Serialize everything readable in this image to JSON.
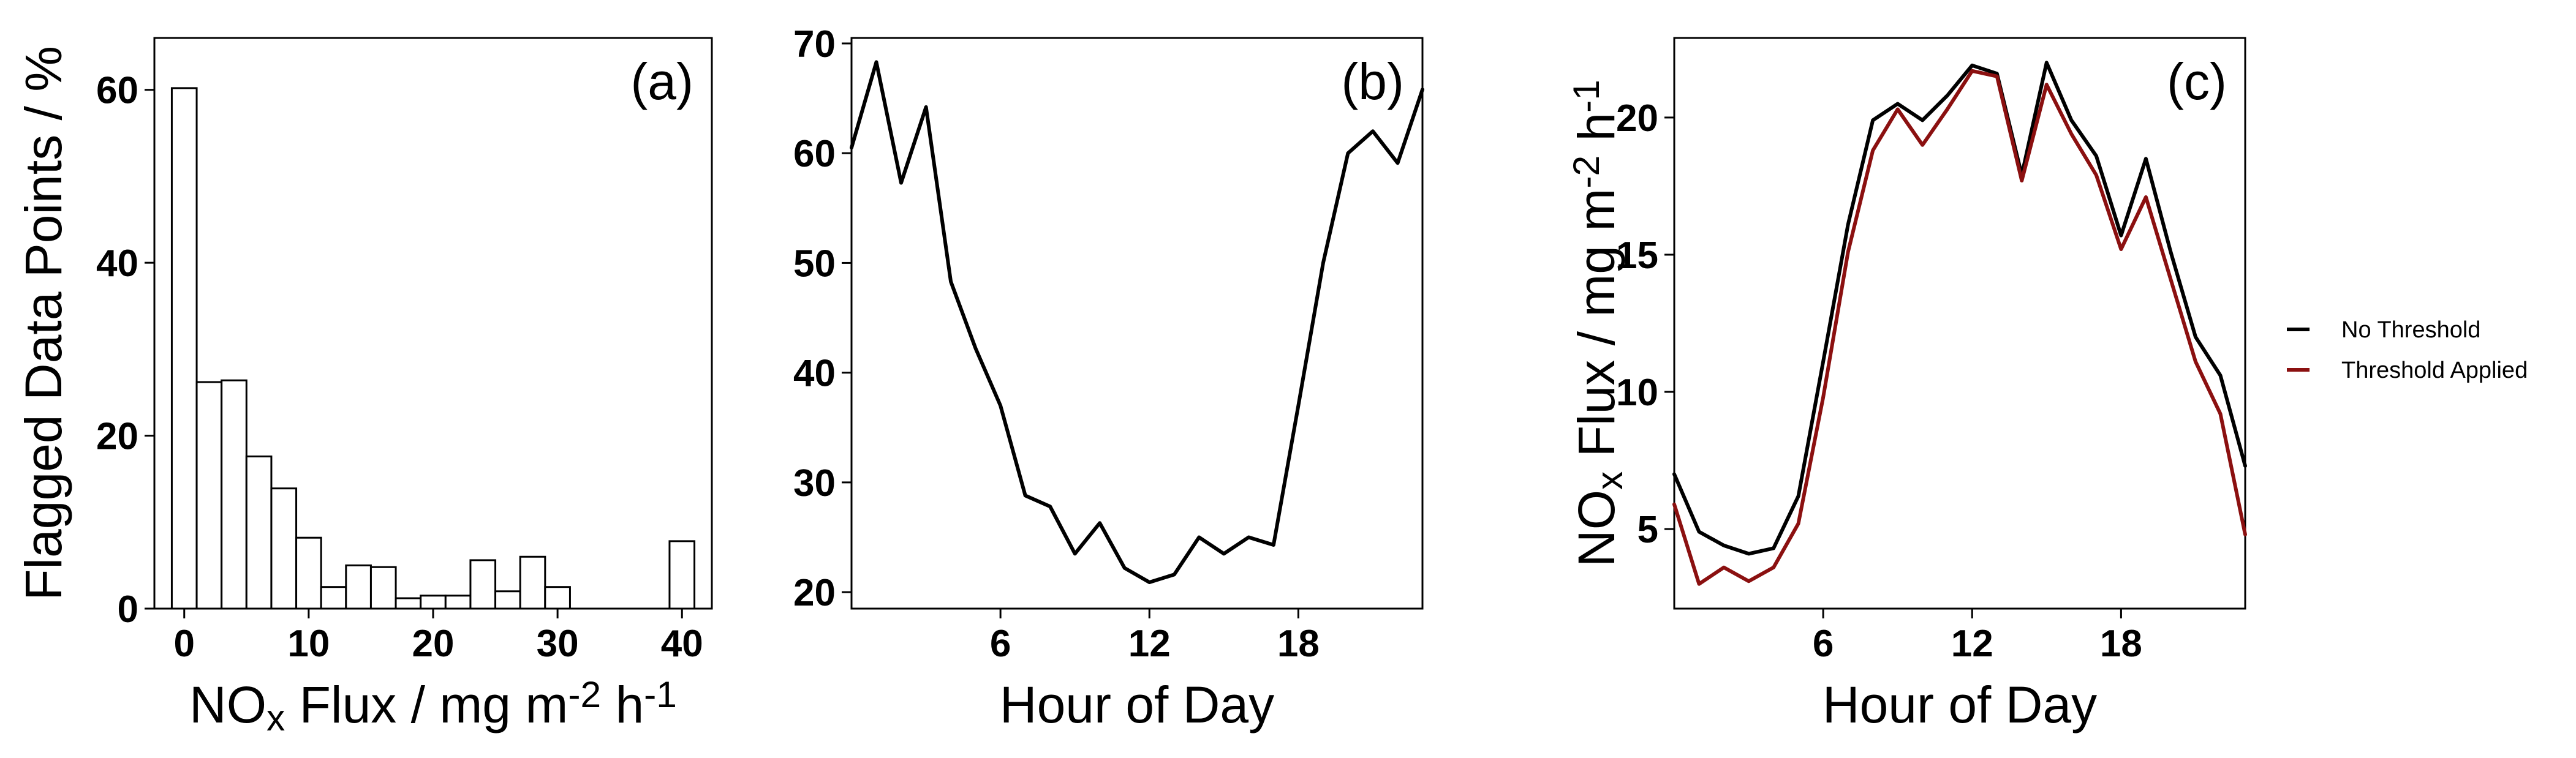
{
  "chart_data": [
    {
      "type": "bar",
      "panel_label": "(a)",
      "xlabel": {
        "base": "NO",
        "sub": "x",
        "mid": " Flux / mg m",
        "sup1": "-2",
        "tail": " h",
        "sup2": "-1"
      },
      "ylabel": "Flagged Data Points / %",
      "xticks": [
        0,
        10,
        20,
        30,
        40
      ],
      "yticks": [
        0,
        20,
        40,
        60
      ],
      "xlim": [
        -2.4,
        42.4
      ],
      "ylim": [
        0,
        66
      ],
      "bin_width": 2,
      "bin_centers": [
        0,
        2,
        4,
        6,
        8,
        10,
        12,
        14,
        16,
        18,
        20,
        22,
        24,
        26,
        28,
        30,
        40
      ],
      "values": [
        60.2,
        26.2,
        26.4,
        17.6,
        13.9,
        8.2,
        2.5,
        5.0,
        4.8,
        1.2,
        1.5,
        1.5,
        5.6,
        2.0,
        6.0,
        2.5,
        7.8
      ],
      "fill": "#ffffff",
      "stroke": "#000000"
    },
    {
      "type": "line",
      "panel_label": "(b)",
      "xlabel": "Hour of Day",
      "ylabel": "",
      "xticks": [
        6,
        12,
        18
      ],
      "yticks": [
        20,
        30,
        40,
        50,
        60,
        70
      ],
      "xlim": [
        0,
        23
      ],
      "ylim": [
        18.5,
        70.5
      ],
      "x": [
        0,
        1,
        2,
        3,
        4,
        5,
        6,
        7,
        8,
        9,
        10,
        11,
        12,
        13,
        14,
        15,
        16,
        17,
        18,
        19,
        20,
        21,
        22,
        23
      ],
      "series": [
        {
          "values": [
            60.5,
            68.3,
            57.3,
            64.2,
            48.3,
            42.2,
            37.0,
            28.8,
            27.8,
            23.5,
            26.3,
            22.2,
            20.9,
            21.6,
            25.0,
            23.5,
            25.0,
            24.3,
            37.0,
            50.0,
            60.0,
            62.0,
            59.1,
            65.8
          ],
          "color": "#000000"
        }
      ]
    },
    {
      "type": "line",
      "panel_label": "(c)",
      "xlabel": "Hour of Day",
      "ylabel": {
        "base": "NO",
        "sub": "x",
        "mid": " Flux / mg m",
        "sup1": "-2",
        "tail": " h",
        "sup2": "-1"
      },
      "xticks": [
        6,
        12,
        18
      ],
      "yticks": [
        5,
        10,
        15,
        20
      ],
      "xlim": [
        0,
        23
      ],
      "ylim": [
        2.1,
        22.9
      ],
      "x": [
        0,
        1,
        2,
        3,
        4,
        5,
        6,
        7,
        8,
        9,
        10,
        11,
        12,
        13,
        14,
        15,
        16,
        17,
        18,
        19,
        20,
        21,
        22,
        23
      ],
      "series": [
        {
          "name": "No Threshold",
          "color": "#000000",
          "values": [
            7.0,
            4.9,
            4.4,
            4.1,
            4.3,
            6.2,
            11.1,
            16.1,
            19.9,
            20.5,
            19.9,
            20.8,
            21.9,
            21.6,
            17.9,
            22.0,
            19.9,
            18.6,
            15.7,
            18.5,
            15.1,
            12.0,
            10.6,
            7.3
          ]
        },
        {
          "name": "Threshold Applied",
          "color": "#8b1010",
          "values": [
            5.9,
            3.0,
            3.6,
            3.1,
            3.6,
            5.2,
            9.8,
            15.1,
            18.8,
            20.3,
            19.0,
            20.3,
            21.7,
            21.5,
            17.7,
            21.2,
            19.4,
            17.9,
            15.2,
            17.1,
            14.1,
            11.1,
            9.2,
            4.8
          ]
        }
      ]
    }
  ],
  "legend": {
    "items": [
      {
        "label": "No Threshold",
        "color": "#000000"
      },
      {
        "label": "Threshold Applied",
        "color": "#8b1010"
      }
    ]
  }
}
